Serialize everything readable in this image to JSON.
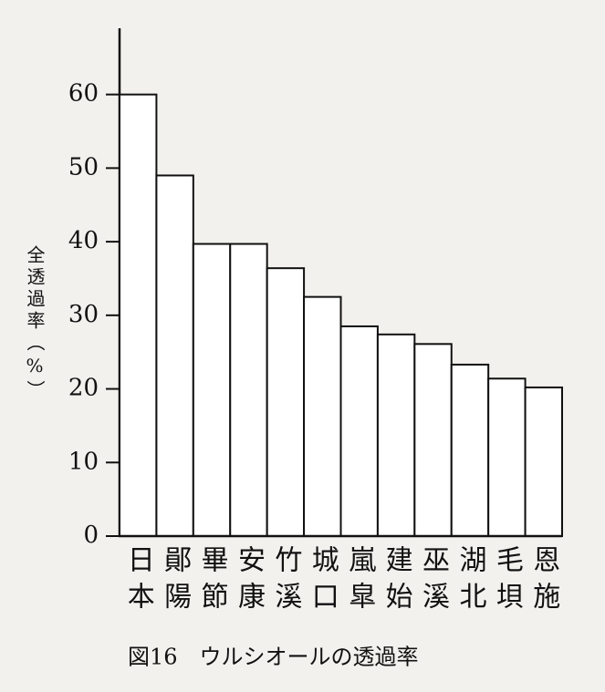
{
  "chart_data": {
    "type": "bar",
    "title": "図16　ウルシオールの透過率",
    "y_label": "全透過率（%）",
    "categories": [
      "日本",
      "鄖陽",
      "畢節",
      "安康",
      "竹溪",
      "城口",
      "嵐皐",
      "建始",
      "巫溪",
      "湖北",
      "毛垻",
      "恩施"
    ],
    "values": [
      60,
      49,
      39.7,
      39.7,
      36.4,
      32.5,
      28.5,
      27.4,
      26.1,
      23.3,
      21.4,
      20.2
    ],
    "color": "#ffffff",
    "ylim": [
      0,
      69
    ],
    "yticks": [
      0,
      10,
      20,
      30,
      40,
      50,
      60
    ],
    "grid": false
  }
}
